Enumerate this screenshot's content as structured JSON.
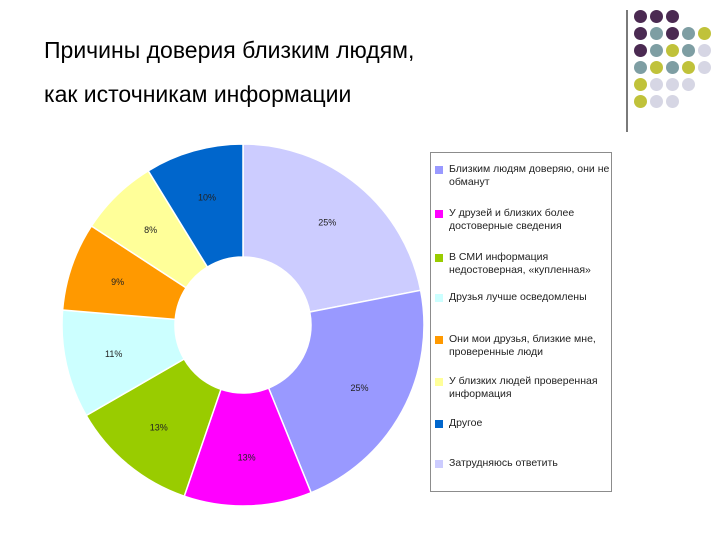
{
  "header": {
    "title_line1": "Причины доверия близким людям,",
    "title_line2": "как источникам информации"
  },
  "decor": {
    "dot_colors": [
      "#4b2a52",
      "#7e9ea3",
      "#c0c23a",
      "#d6d6e4"
    ]
  },
  "chart_data": {
    "type": "pie",
    "subtype": "donut",
    "legend_position": "right",
    "categories": [
      "Близким людям доверяю, они не обманут",
      "У друзей и близких более достоверные сведения",
      "В СМИ информация недостоверная, «купленная»",
      "Друзья лучше осведомлены",
      "Они мои друзья, близкие мне, проверенные люди",
      "У близких людей проверенная информация",
      "Другое",
      "Затрудняюсь ответить"
    ],
    "values": [
      25,
      25,
      13,
      13,
      11,
      9,
      8,
      10
    ],
    "slice_labels": [
      "25%",
      "25%",
      "13%",
      "13%",
      "11%",
      "9%",
      "8%",
      "10%"
    ],
    "slice_colors": [
      "#ccccff",
      "#9999ff",
      "#ff00ff",
      "#99cc00",
      "#ccffff",
      "#ff9900",
      "#ffff99",
      "#0066cc"
    ],
    "legend": [
      {
        "label": "Близким людям доверяю, они не обманут",
        "color": "#9999ff"
      },
      {
        "label": "У друзей и близких более достоверные сведения",
        "color": "#ff00ff"
      },
      {
        "label": "В СМИ информация недостоверная, «купленная»",
        "color": "#99cc00"
      },
      {
        "label": "Друзья лучше осведомлены",
        "color": "#ccffff"
      },
      {
        "label": "Они мои друзья, близкие мне, проверенные люди",
        "color": "#ff9900"
      },
      {
        "label": "У близких людей проверенная информация",
        "color": "#ffff99"
      },
      {
        "label": "Другое",
        "color": "#0066cc"
      },
      {
        "label": "Затрудняюсь ответить",
        "color": "#ccccff"
      }
    ]
  }
}
